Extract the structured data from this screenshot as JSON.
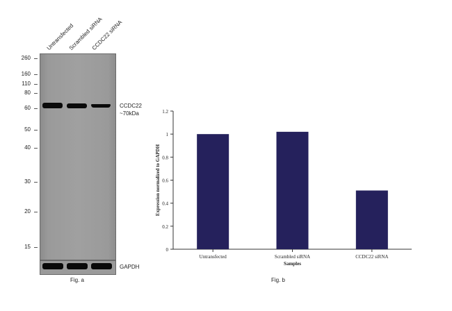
{
  "western_blot": {
    "lanes": [
      "Untransfected",
      "Scrambled siRNA",
      "CCDC22 siRNA"
    ],
    "mw_markers": [
      "260",
      "160",
      "110",
      "80",
      "60",
      "50",
      "40",
      "30",
      "20",
      "15"
    ],
    "target_label_line1": "CCDC22",
    "target_label_line2": "~70kDa",
    "loading_control_label": "GAPDH",
    "caption": "Fig. a"
  },
  "figure_b_caption": "Fig. b",
  "chart_data": {
    "type": "bar",
    "categories": [
      "Untransfected",
      "Scrambled siRNA",
      "CCDC22 siRNA"
    ],
    "values": [
      1.0,
      1.02,
      0.51
    ],
    "xlabel": "Samples",
    "ylabel": "Expression normalized to GAPDH",
    "ylim": [
      0,
      1.2
    ],
    "yticks": [
      "0",
      "0.2",
      "0.4",
      "0.6",
      "0.8",
      "1",
      "1.2"
    ],
    "bar_color": "#25215c",
    "grid": false
  }
}
